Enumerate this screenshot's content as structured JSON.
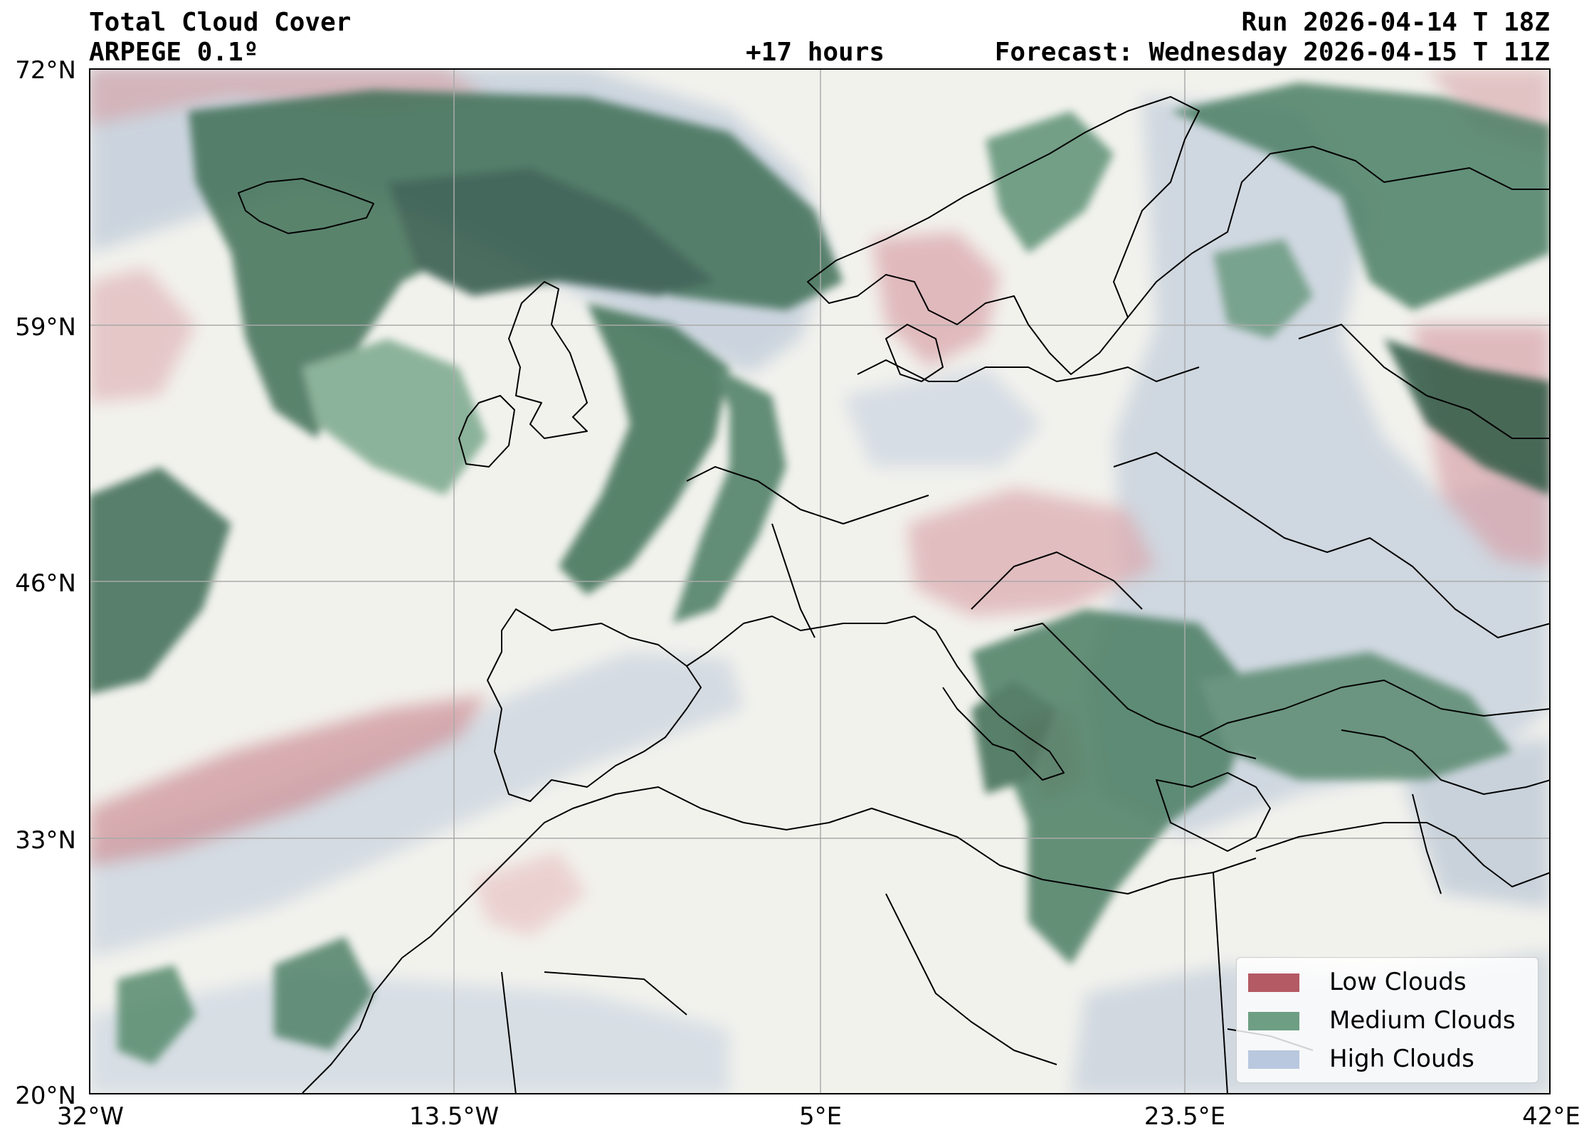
{
  "header": {
    "title": "Total Cloud Cover",
    "model": "ARPEGE 0.1º",
    "run": "Run 2026-04-14 T 18Z",
    "lead": "+17 hours",
    "valid": "Forecast: Wednesday 2026-04-15 T 11Z"
  },
  "axes": {
    "y_ticks": [
      "72°N",
      "59°N",
      "46°N",
      "33°N",
      "20°N"
    ],
    "x_ticks": [
      "32°W",
      "13.5°W",
      "5°E",
      "23.5°E",
      "42°E"
    ],
    "lat_range": [
      20,
      72
    ],
    "lon_range": [
      -32,
      42
    ],
    "grid": true
  },
  "legend": {
    "position": "bottom-right",
    "items": [
      {
        "label": "Low Clouds",
        "color": "#b35a64"
      },
      {
        "label": "Medium Clouds",
        "color": "#6e9e84"
      },
      {
        "label": "High Clouds",
        "color": "#b9c8de"
      }
    ]
  },
  "colors": {
    "background": "#f2f2ed",
    "coastline": "#000000",
    "gridline": "#aaaaaa"
  }
}
